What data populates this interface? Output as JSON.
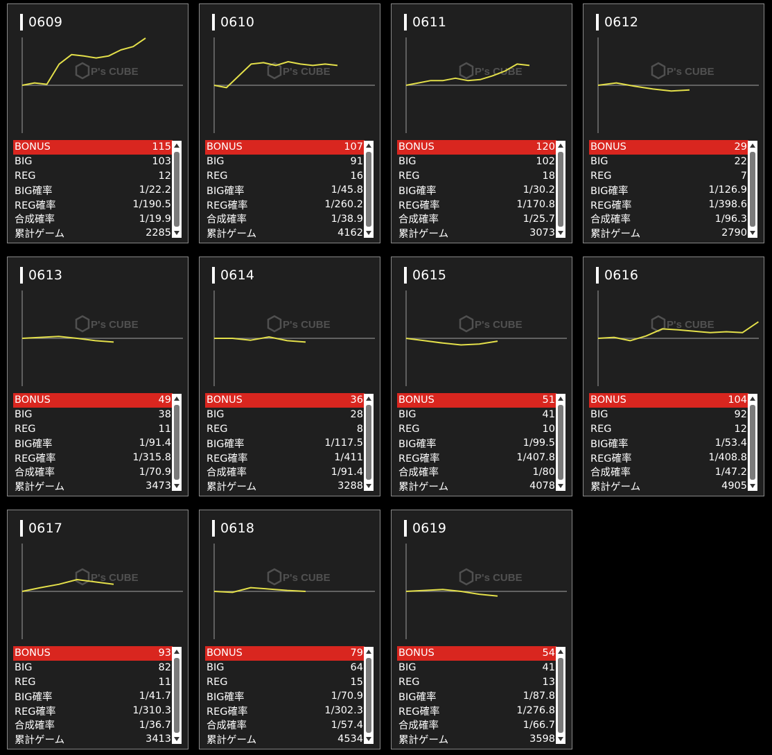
{
  "colors": {
    "background": "#000000",
    "card": "#1f1f1f",
    "highlight": "#d9261f",
    "line": "#e4e04a",
    "axis": "#8a8a8a"
  },
  "watermark": {
    "brand": "P's CUBE",
    "icon": "cube-logo-icon"
  },
  "labels": {
    "bonus": "BONUS",
    "big": "BIG",
    "reg": "REG",
    "big_rate": "BIG確率",
    "reg_rate": "REG確率",
    "total_rate": "合成確率",
    "games": "累計ゲーム"
  },
  "machines": [
    {
      "id": "0609",
      "bonus": "115",
      "big": "103",
      "reg": "12",
      "big_rate": "1/22.2",
      "reg_rate": "1/190.5",
      "total_rate": "1/19.9",
      "games": "2285",
      "chart_data": {
        "type": "line",
        "x": [
          0,
          0.1,
          0.2,
          0.3,
          0.4,
          0.5,
          0.6,
          0.7,
          0.8,
          0.9,
          1
        ],
        "values": [
          0,
          0.05,
          0.02,
          0.45,
          0.65,
          0.62,
          0.58,
          0.62,
          0.75,
          0.82,
          1.0
        ]
      }
    },
    {
      "id": "0610",
      "bonus": "107",
      "big": "91",
      "reg": "16",
      "big_rate": "1/45.8",
      "reg_rate": "1/260.2",
      "total_rate": "1/38.9",
      "games": "4162",
      "chart_data": {
        "type": "line",
        "x": [
          0,
          0.1,
          0.2,
          0.3,
          0.4,
          0.5,
          0.6,
          0.7,
          0.8,
          0.9,
          1
        ],
        "values": [
          0,
          -0.05,
          0.2,
          0.45,
          0.48,
          0.42,
          0.5,
          0.45,
          0.42,
          0.45,
          0.42
        ]
      }
    },
    {
      "id": "0611",
      "bonus": "120",
      "big": "102",
      "reg": "18",
      "big_rate": "1/30.2",
      "reg_rate": "1/170.8",
      "total_rate": "1/25.7",
      "games": "3073",
      "chart_data": {
        "type": "line",
        "x": [
          0,
          0.1,
          0.2,
          0.3,
          0.4,
          0.5,
          0.6,
          0.7,
          0.8,
          0.9,
          1
        ],
        "values": [
          0,
          0.05,
          0.1,
          0.1,
          0.15,
          0.1,
          0.12,
          0.2,
          0.3,
          0.45,
          0.42
        ]
      }
    },
    {
      "id": "0612",
      "bonus": "29",
      "big": "22",
      "reg": "7",
      "big_rate": "1/126.9",
      "reg_rate": "1/398.6",
      "total_rate": "1/96.3",
      "games": "2790",
      "chart_data": {
        "type": "line",
        "x": [
          0,
          0.2,
          0.4,
          0.6,
          0.8,
          1
        ],
        "values": [
          0,
          0.05,
          -0.02,
          -0.08,
          -0.12,
          -0.1
        ]
      }
    },
    {
      "id": "0613",
      "bonus": "49",
      "big": "38",
      "reg": "11",
      "big_rate": "1/91.4",
      "reg_rate": "1/315.8",
      "total_rate": "1/70.9",
      "games": "3473",
      "chart_data": {
        "type": "line",
        "x": [
          0,
          0.2,
          0.4,
          0.6,
          0.8,
          1
        ],
        "values": [
          0,
          0.02,
          0.04,
          0.0,
          -0.05,
          -0.08
        ]
      }
    },
    {
      "id": "0614",
      "bonus": "36",
      "big": "28",
      "reg": "8",
      "big_rate": "1/117.5",
      "reg_rate": "1/411",
      "total_rate": "1/91.4",
      "games": "3288",
      "chart_data": {
        "type": "line",
        "x": [
          0,
          0.2,
          0.4,
          0.6,
          0.8,
          1
        ],
        "values": [
          0,
          0.0,
          -0.04,
          0.03,
          -0.05,
          -0.08
        ]
      }
    },
    {
      "id": "0615",
      "bonus": "51",
      "big": "41",
      "reg": "10",
      "big_rate": "1/99.5",
      "reg_rate": "1/407.8",
      "total_rate": "1/80",
      "games": "4078",
      "chart_data": {
        "type": "line",
        "x": [
          0,
          0.2,
          0.4,
          0.6,
          0.8,
          1
        ],
        "values": [
          0,
          -0.05,
          -0.1,
          -0.14,
          -0.12,
          -0.06
        ]
      }
    },
    {
      "id": "0616",
      "bonus": "104",
      "big": "92",
      "reg": "12",
      "big_rate": "1/53.4",
      "reg_rate": "1/408.8",
      "total_rate": "1/47.2",
      "games": "4905",
      "chart_data": {
        "type": "line",
        "x": [
          0,
          0.1,
          0.2,
          0.3,
          0.4,
          0.5,
          0.6,
          0.7,
          0.8,
          0.9,
          1
        ],
        "values": [
          0,
          0.02,
          -0.05,
          0.05,
          0.2,
          0.18,
          0.15,
          0.12,
          0.14,
          0.12,
          0.35
        ]
      }
    },
    {
      "id": "0617",
      "bonus": "93",
      "big": "82",
      "reg": "11",
      "big_rate": "1/41.7",
      "reg_rate": "1/310.3",
      "total_rate": "1/36.7",
      "games": "3413",
      "chart_data": {
        "type": "line",
        "x": [
          0,
          0.2,
          0.4,
          0.6,
          0.8,
          1
        ],
        "values": [
          0,
          0.08,
          0.15,
          0.25,
          0.2,
          0.15
        ]
      }
    },
    {
      "id": "0618",
      "bonus": "79",
      "big": "64",
      "reg": "15",
      "big_rate": "1/70.9",
      "reg_rate": "1/302.3",
      "total_rate": "1/57.4",
      "games": "4534",
      "chart_data": {
        "type": "line",
        "x": [
          0,
          0.2,
          0.4,
          0.6,
          0.8,
          1
        ],
        "values": [
          0,
          -0.02,
          0.08,
          0.05,
          0.02,
          0.0
        ]
      }
    },
    {
      "id": "0619",
      "bonus": "54",
      "big": "41",
      "reg": "13",
      "big_rate": "1/87.8",
      "reg_rate": "1/276.8",
      "total_rate": "1/66.7",
      "games": "3598",
      "chart_data": {
        "type": "line",
        "x": [
          0,
          0.2,
          0.4,
          0.6,
          0.8,
          1
        ],
        "values": [
          0,
          0.02,
          0.04,
          0.0,
          -0.06,
          -0.1
        ]
      }
    }
  ]
}
